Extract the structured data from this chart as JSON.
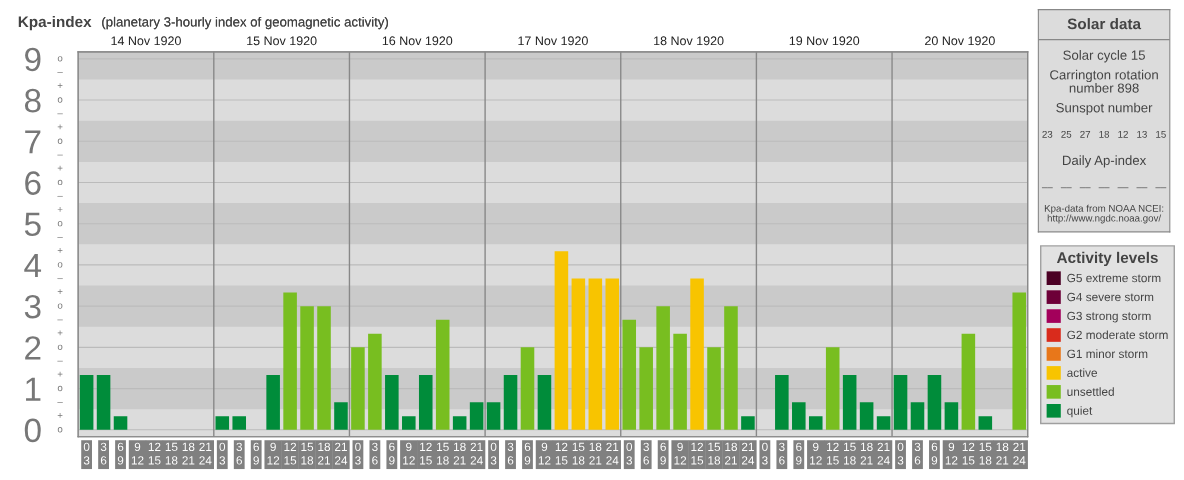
{
  "chart_data": [
    {
      "type": "bar",
      "title": "Kpa-index",
      "subtitle": "(planetary 3-hourly index of geomagnetic activity)",
      "categories": [
        "0\n3",
        "3\n6",
        "6\n9",
        "9\n12",
        "12\n15",
        "15\n18",
        "18\n21",
        "21\n24",
        "0\n3",
        "3\n6",
        "6\n9",
        "9\n12",
        "12\n15",
        "15\n18",
        "18\n21",
        "21\n24",
        "0\n3",
        "3\n6",
        "6\n9",
        "9\n12",
        "12\n15",
        "15\n18",
        "18\n21",
        "21\n24",
        "0\n3",
        "3\n6",
        "6\n9",
        "9\n12",
        "12\n15",
        "15\n18",
        "18\n21",
        "21\n24",
        "0\n3",
        "3\n6",
        "6\n9",
        "9\n12",
        "12\n15",
        "15\n18",
        "18\n21",
        "21\n24",
        "0\n3",
        "3\n6",
        "6\n9",
        "9\n12",
        "12\n15",
        "15\n18",
        "18\n21",
        "21\n24",
        "0\n3",
        "3\n6",
        "6\n9",
        "9\n12",
        "12\n15",
        "15\n18",
        "18\n21",
        "21\n24"
      ],
      "legend_title": "Activity levels",
      "legend": "right",
      "grid": "y",
      "series": [
        {
          "name": "G5 extreme storm",
          "color": "#4b0024",
          "values": [
            null,
            null,
            null,
            null,
            null,
            null,
            null,
            null,
            null,
            null,
            null,
            null,
            null,
            null,
            null,
            null,
            null,
            null,
            null,
            null,
            null,
            null,
            null,
            null,
            null,
            null,
            null,
            null,
            null,
            null,
            null,
            null,
            null,
            null,
            null,
            null,
            null,
            null,
            null,
            null,
            null,
            null,
            null,
            null,
            null,
            null,
            null,
            null,
            null,
            null,
            null,
            null,
            null,
            null,
            null,
            null
          ]
        },
        {
          "name": "G4 severe storm",
          "color": "#6d0038",
          "values": [
            null,
            null,
            null,
            null,
            null,
            null,
            null,
            null,
            null,
            null,
            null,
            null,
            null,
            null,
            null,
            null,
            null,
            null,
            null,
            null,
            null,
            null,
            null,
            null,
            null,
            null,
            null,
            null,
            null,
            null,
            null,
            null,
            null,
            null,
            null,
            null,
            null,
            null,
            null,
            null,
            null,
            null,
            null,
            null,
            null,
            null,
            null,
            null,
            null,
            null,
            null,
            null,
            null,
            null,
            null,
            null
          ]
        },
        {
          "name": "G3 strong storm",
          "color": "#a3005b",
          "values": [
            null,
            null,
            null,
            null,
            null,
            null,
            null,
            null,
            null,
            null,
            null,
            null,
            null,
            null,
            null,
            null,
            null,
            null,
            null,
            null,
            null,
            null,
            null,
            null,
            null,
            null,
            null,
            null,
            null,
            null,
            null,
            null,
            null,
            null,
            null,
            null,
            null,
            null,
            null,
            null,
            null,
            null,
            null,
            null,
            null,
            null,
            null,
            null,
            null,
            null,
            null,
            null,
            null,
            null,
            null,
            null
          ]
        },
        {
          "name": "G2 moderate storm",
          "color": "#d92b1c",
          "values": [
            null,
            null,
            null,
            null,
            null,
            null,
            null,
            null,
            null,
            null,
            null,
            null,
            null,
            null,
            null,
            null,
            null,
            null,
            null,
            null,
            null,
            null,
            null,
            null,
            null,
            null,
            null,
            null,
            null,
            null,
            null,
            null,
            null,
            null,
            null,
            null,
            null,
            null,
            null,
            null,
            null,
            null,
            null,
            null,
            null,
            null,
            null,
            null,
            null,
            null,
            null,
            null,
            null,
            null,
            null,
            null
          ]
        },
        {
          "name": "G1 minor storm",
          "color": "#e8771a",
          "values": [
            null,
            null,
            null,
            null,
            null,
            null,
            null,
            null,
            null,
            null,
            null,
            null,
            null,
            null,
            null,
            null,
            null,
            null,
            null,
            null,
            null,
            null,
            null,
            null,
            null,
            null,
            null,
            null,
            null,
            null,
            null,
            null,
            null,
            null,
            null,
            null,
            null,
            null,
            null,
            null,
            null,
            null,
            null,
            null,
            null,
            null,
            null,
            null,
            null,
            null,
            null,
            null,
            null,
            null,
            null,
            null
          ]
        },
        {
          "name": "active",
          "color": "#f8c400",
          "values": [
            null,
            null,
            null,
            null,
            null,
            null,
            null,
            null,
            null,
            null,
            null,
            null,
            null,
            null,
            null,
            null,
            null,
            null,
            null,
            null,
            null,
            null,
            null,
            null,
            null,
            null,
            null,
            null,
            4.33,
            3.67,
            3.67,
            3.67,
            null,
            null,
            null,
            null,
            3.67,
            null,
            null,
            null,
            null,
            null,
            null,
            null,
            null,
            null,
            null,
            null,
            null,
            null,
            null,
            null,
            null,
            null,
            null,
            null
          ]
        },
        {
          "name": "unsettled",
          "color": "#78be20",
          "values": [
            null,
            null,
            null,
            null,
            null,
            null,
            null,
            null,
            null,
            null,
            null,
            null,
            3.33,
            3,
            3,
            null,
            2,
            2.33,
            null,
            null,
            null,
            2.67,
            null,
            null,
            null,
            null,
            2,
            null,
            null,
            null,
            null,
            null,
            2.67,
            2,
            3,
            2.33,
            null,
            2,
            3,
            null,
            null,
            null,
            null,
            null,
            2,
            null,
            null,
            null,
            null,
            null,
            null,
            null,
            2.33,
            null,
            null,
            3.33
          ]
        },
        {
          "name": "quiet",
          "color": "#008c3a",
          "values": [
            1.33,
            1.33,
            0.33,
            0,
            0,
            0,
            0,
            0,
            0.33,
            0.33,
            0,
            1.33,
            null,
            null,
            null,
            0.67,
            null,
            null,
            1.33,
            0.33,
            1.33,
            null,
            0.33,
            0.67,
            0.67,
            1.33,
            null,
            1.33,
            null,
            null,
            null,
            null,
            null,
            null,
            null,
            null,
            null,
            null,
            null,
            0.33,
            0,
            1.33,
            0.67,
            0.33,
            null,
            1.33,
            0.67,
            0.33,
            1.33,
            0.67,
            1.33,
            0.67,
            null,
            0.33,
            0,
            null
          ]
        }
      ],
      "ylim": [
        -0.17,
        9.17
      ],
      "yticks": [
        0,
        1,
        2,
        3,
        4,
        5,
        6,
        7,
        8,
        9
      ],
      "annotations": [
        "o",
        "+",
        "–",
        "o",
        "+",
        "–",
        "o",
        "+",
        "–",
        "o",
        "+",
        "–",
        "o",
        "+",
        "–",
        "o",
        "+",
        "–",
        "o",
        "+",
        "–",
        "o",
        "+",
        "–",
        "o",
        "+",
        "–",
        "o"
      ],
      "x2lim": [
        "1920-11-14",
        "1920-11-21"
      ],
      "x2ticks": [
        {
          "value": "1920-11-14T12:00",
          "label": "14 Nov 1920"
        },
        {
          "value": "1920-11-15T12:00",
          "label": "15 Nov 1920"
        },
        {
          "value": "1920-11-16T12:00",
          "label": "16 Nov 1920"
        },
        {
          "value": "1920-11-17T12:00",
          "label": "17 Nov 1920"
        },
        {
          "value": "1920-11-18T12:00",
          "label": "18 Nov 1920"
        },
        {
          "value": "1920-11-19T12:00",
          "label": "19 Nov 1920"
        },
        {
          "value": "1920-11-20T12:00",
          "label": "20 Nov 1920"
        }
      ],
      "bands": [
        {
          "axis": "y",
          "from": 0.5,
          "to": 1.5,
          "color": "#cacaca"
        },
        {
          "axis": "y",
          "from": 2.5,
          "to": 3.5,
          "color": "#cacaca"
        },
        {
          "axis": "y",
          "from": 4.5,
          "to": 5.5,
          "color": "#cacaca"
        },
        {
          "axis": "y",
          "from": 6.5,
          "to": 7.5,
          "color": "#cacaca"
        },
        {
          "axis": "y",
          "from": 8.5,
          "to": 9.17,
          "color": "#cacaca"
        }
      ]
    },
    {
      "type": "other",
      "title": "Solar data",
      "annotations": [
        "Solar cycle 15",
        "Carrington rotation\nnumber 898",
        "Sunspot number",
        "23   25   27   18   12   13   15",
        "Daily Ap-index",
        "––   ––   ––   ––   ––   ––   ––",
        "Kpa-data from NOAA NCEI:\nhttp://www.ngdc.noaa.gov/"
      ]
    }
  ]
}
